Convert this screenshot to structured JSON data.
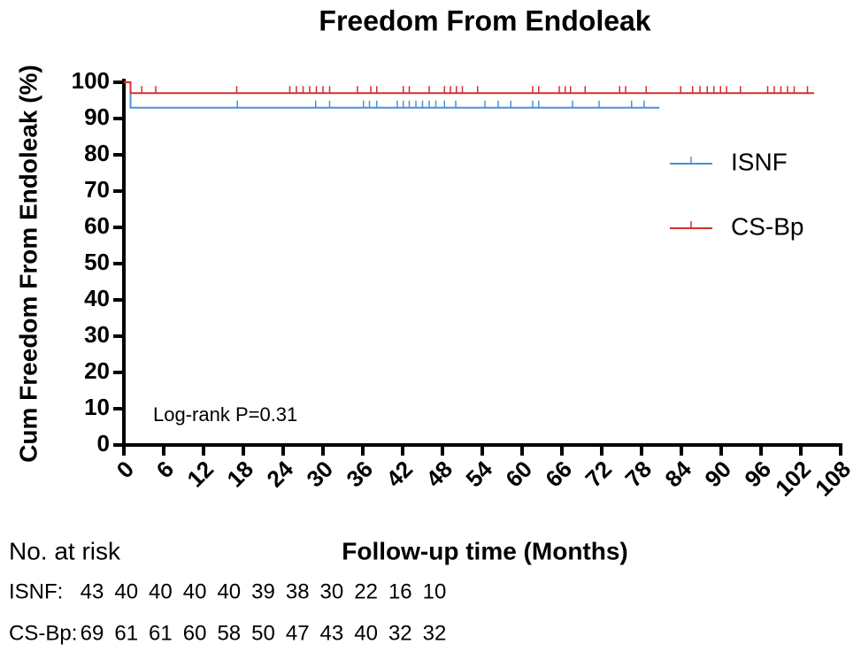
{
  "chart_data": {
    "type": "km",
    "title": "Freedom From Endoleak",
    "x_label": "Follow-up time (Months)",
    "y_label": "Cum Freedom From Endoleak (%)",
    "annotation": "Log-rank P=0.31",
    "xlim": [
      0,
      108
    ],
    "xticks": [
      0,
      6,
      12,
      18,
      24,
      30,
      36,
      42,
      48,
      54,
      60,
      66,
      72,
      78,
      84,
      90,
      96,
      102,
      108
    ],
    "ylim": [
      0,
      100
    ],
    "yticks": [
      0,
      10,
      20,
      30,
      40,
      50,
      60,
      70,
      80,
      90,
      100
    ],
    "legend": "upper right",
    "series": [
      {
        "name": "ISNF",
        "color": "#4a90d9",
        "x": [
          0,
          1,
          1,
          80.7
        ],
        "values": [
          100,
          100,
          93,
          93
        ],
        "censor_x": [
          17.1,
          28.9,
          31,
          36.1,
          37,
          38.1,
          41.2,
          42.1,
          43,
          44,
          45,
          46,
          47,
          48.3,
          50,
          54.4,
          56.4,
          58.3,
          61.6,
          62.5,
          67.6,
          71.6,
          76.5,
          78.4
        ],
        "censor_values": [
          93,
          93,
          93,
          93,
          93,
          93,
          93,
          93,
          93,
          93,
          93,
          93,
          93,
          93,
          93,
          93,
          93,
          93,
          93,
          93,
          93,
          93,
          93,
          93
        ]
      },
      {
        "name": "CS-Bp",
        "color": "#d0312d",
        "x": [
          0,
          1,
          1,
          104
        ],
        "values": [
          100,
          100,
          97,
          97
        ],
        "censor_x": [
          2.7,
          4.8,
          17,
          25,
          26,
          27,
          28,
          29,
          30,
          31,
          35.2,
          37.2,
          38.1,
          42.1,
          43,
          46,
          48.3,
          49.2,
          50.1,
          51,
          53.3,
          61.6,
          62.5,
          65.6,
          66.5,
          67.3,
          69.5,
          74.7,
          75.6,
          78.7,
          83.9,
          85.7,
          86.8,
          87.9,
          88.9,
          89.9,
          90.8,
          92.9,
          97,
          98,
          99,
          100,
          101,
          103
        ],
        "censor_values": [
          97,
          97,
          97,
          97,
          97,
          97,
          97,
          97,
          97,
          97,
          97,
          97,
          97,
          97,
          97,
          97,
          97,
          97,
          97,
          97,
          97,
          97,
          97,
          97,
          97,
          97,
          97,
          97,
          97,
          97,
          97,
          97,
          97,
          97,
          97,
          97,
          97,
          97,
          97,
          97,
          97,
          97,
          97,
          97
        ]
      }
    ]
  },
  "risk_table": {
    "title": "No. at risk",
    "rows": [
      {
        "label": "ISNF:",
        "values": [
          43,
          40,
          40,
          40,
          40,
          39,
          38,
          30,
          22,
          16,
          10
        ]
      },
      {
        "label": "CS-Bp:",
        "values": [
          69,
          61,
          61,
          60,
          58,
          50,
          47,
          43,
          40,
          32,
          32
        ]
      }
    ]
  }
}
